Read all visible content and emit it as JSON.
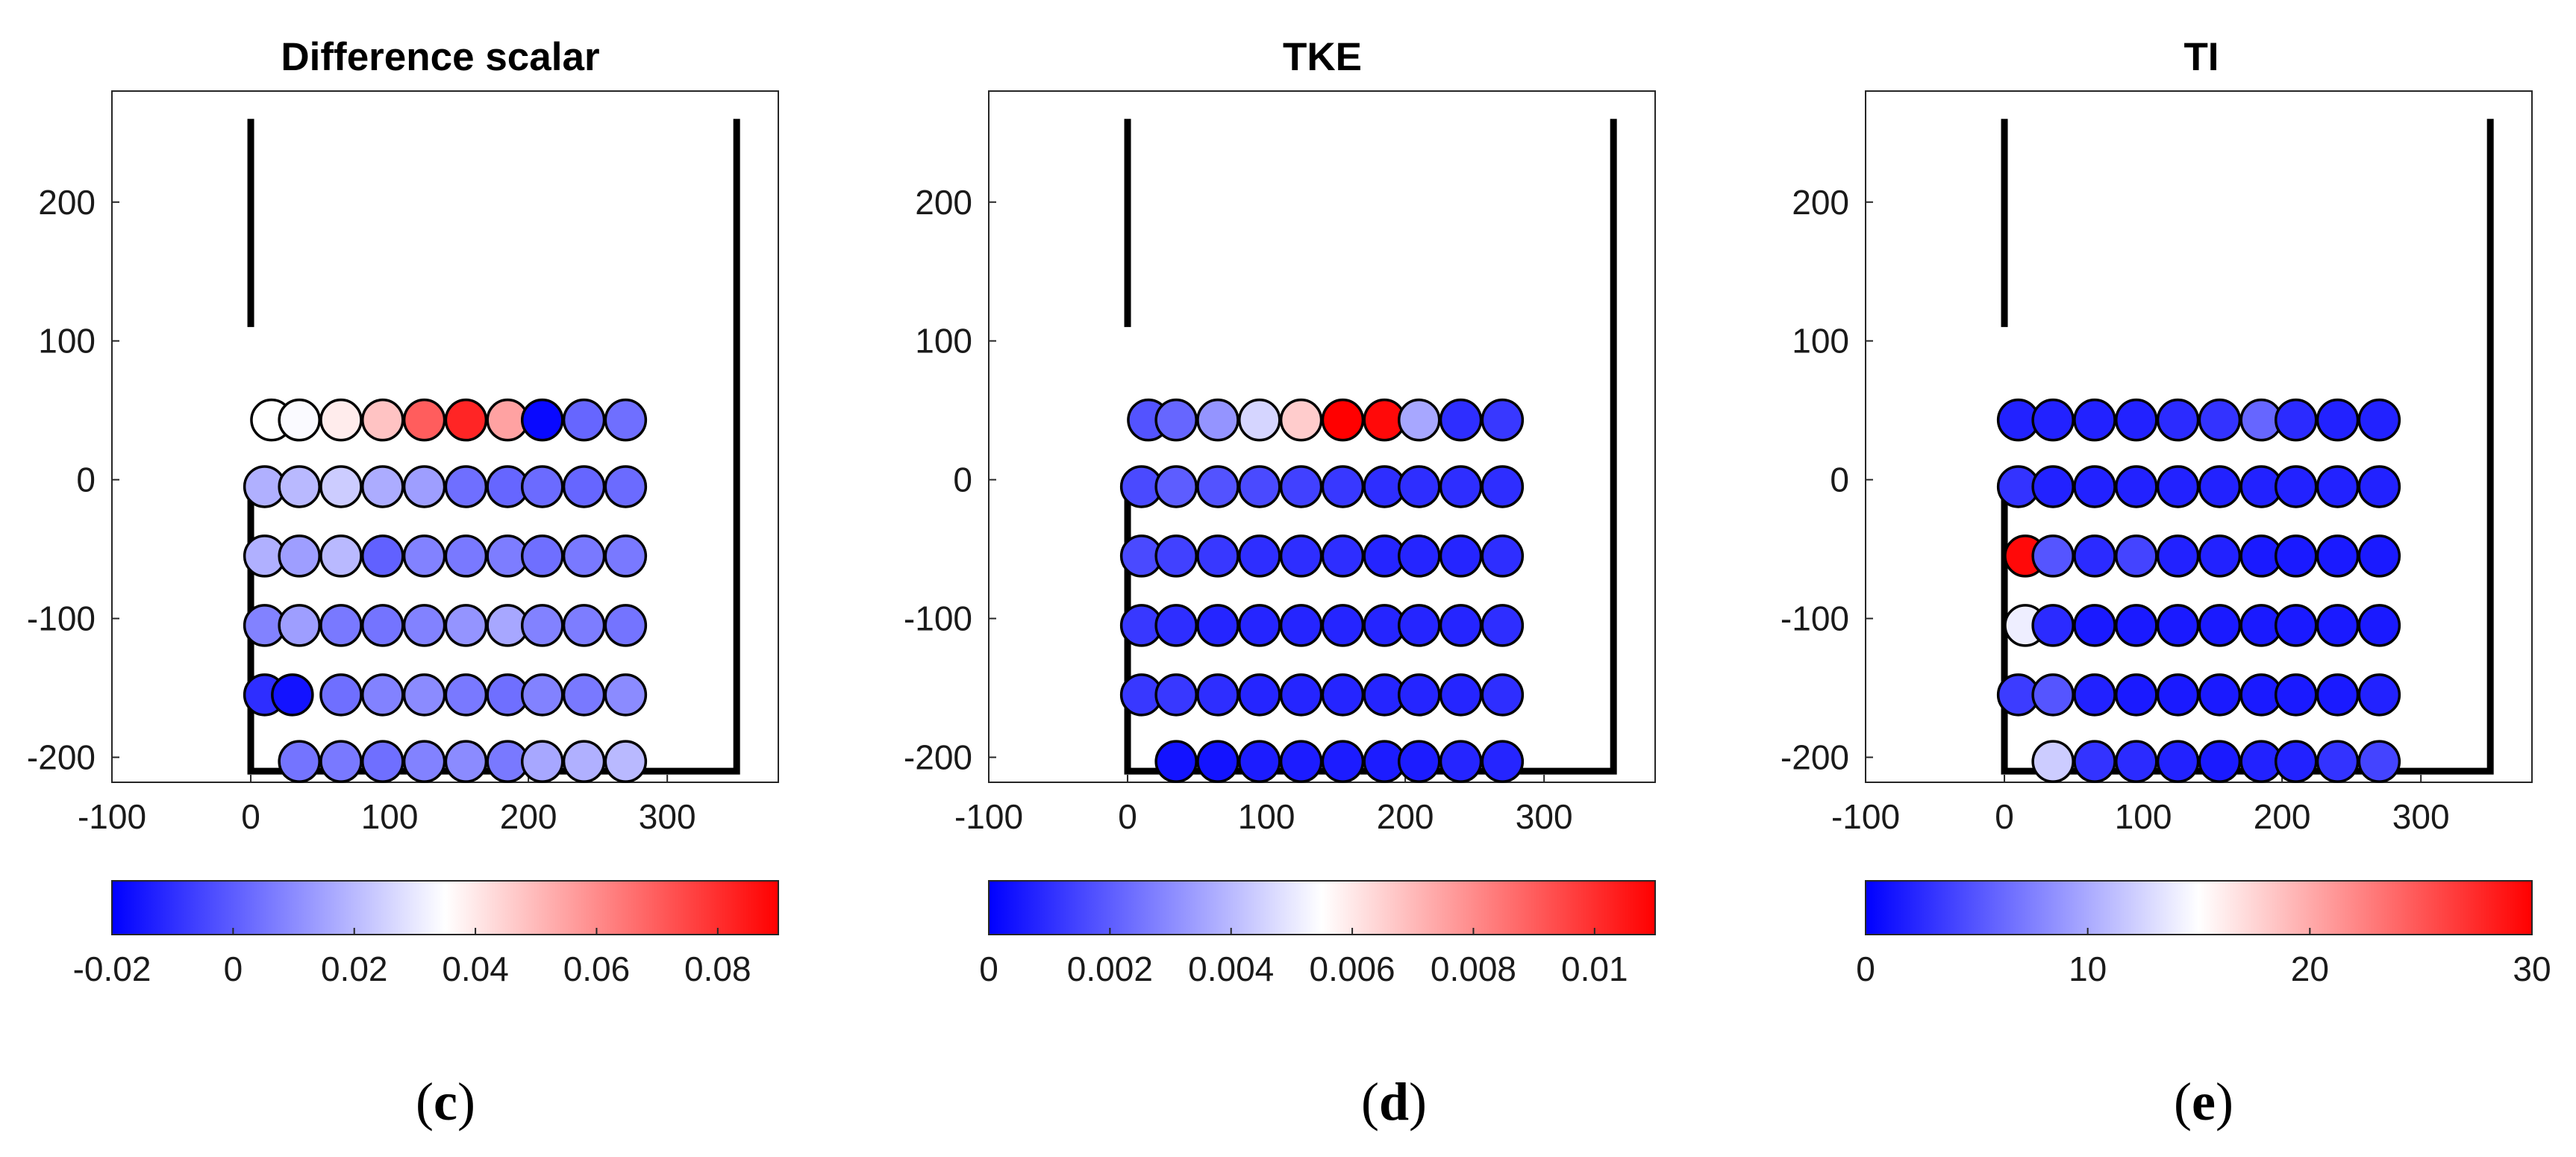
{
  "colors": {
    "low": "#0000ff",
    "mid": "#ffffff",
    "high": "#ff0000",
    "structure": "#000000"
  },
  "chart_data": [
    {
      "type": "scatter",
      "panel": "c",
      "title": "Difference scalar",
      "caption_open": "(",
      "caption_letter": "c",
      "caption_close": ")",
      "xlim": [
        -100,
        380
      ],
      "ylim": [
        -218,
        280
      ],
      "xticks": [
        -100,
        0,
        100,
        200,
        300
      ],
      "xtick_labels": [
        "-100",
        "0",
        "100",
        "200",
        "300"
      ],
      "yticks": [
        200,
        100,
        0,
        -100,
        -200
      ],
      "ytick_labels": [
        "200",
        "100",
        "0",
        "-100",
        "-200"
      ],
      "colorbar": {
        "min": -0.02,
        "max": 0.09,
        "ticks": [
          -0.02,
          0,
          0.02,
          0.04,
          0.06,
          0.08
        ],
        "labels": [
          "-0.02",
          "0",
          "0.02",
          "0.04",
          "0.06",
          "0.08"
        ]
      },
      "walls": [
        [
          [
            0,
            260
          ],
          [
            0,
            110
          ]
        ],
        [
          [
            0,
            0
          ],
          [
            0,
            -210
          ],
          [
            350,
            -210
          ],
          [
            350,
            260
          ]
        ]
      ],
      "rows": [
        {
          "y": 43,
          "x": [
            15,
            35,
            65,
            95,
            125,
            155,
            185,
            210,
            240,
            270
          ],
          "v": [
            0.035,
            0.034,
            0.039,
            0.048,
            0.07,
            0.082,
            0.055,
            -0.018,
            0.002,
            0.004
          ]
        },
        {
          "y": -5,
          "x": [
            10,
            35,
            65,
            95,
            125,
            155,
            185,
            210,
            240,
            270
          ],
          "v": [
            0.018,
            0.02,
            0.024,
            0.017,
            0.014,
            0.004,
            0.002,
            0.003,
            0.002,
            0.003
          ]
        },
        {
          "y": -55,
          "x": [
            10,
            35,
            65,
            95,
            125,
            155,
            185,
            210,
            240,
            270
          ],
          "v": [
            0.018,
            0.014,
            0.02,
            0.001,
            0.008,
            0.006,
            0.007,
            0.004,
            0.006,
            0.006
          ]
        },
        {
          "y": -105,
          "x": [
            10,
            35,
            65,
            95,
            125,
            155,
            185,
            210,
            240,
            270
          ],
          "v": [
            0.008,
            0.014,
            0.006,
            0.005,
            0.008,
            0.012,
            0.016,
            0.008,
            0.007,
            0.005
          ]
        },
        {
          "y": -155,
          "x": [
            10,
            30,
            65,
            95,
            125,
            155,
            185,
            210,
            240,
            270
          ],
          "v": [
            -0.01,
            -0.016,
            0.004,
            0.008,
            0.01,
            0.006,
            0.004,
            0.008,
            0.006,
            0.01
          ]
        },
        {
          "y": -203,
          "x": [
            35,
            65,
            95,
            125,
            155,
            185,
            210,
            240,
            270
          ],
          "v": [
            0.005,
            0.006,
            0.004,
            0.008,
            0.01,
            0.006,
            0.016,
            0.018,
            0.02
          ]
        }
      ]
    },
    {
      "type": "scatter",
      "panel": "d",
      "title": "TKE",
      "caption_open": "(",
      "caption_letter": "d",
      "caption_close": ")",
      "xlim": [
        -100,
        380
      ],
      "ylim": [
        -218,
        280
      ],
      "xticks": [
        -100,
        0,
        100,
        200,
        300
      ],
      "xtick_labels": [
        "-100",
        "0",
        "100",
        "200",
        "300"
      ],
      "yticks": [
        200,
        100,
        0,
        -100,
        -200
      ],
      "ytick_labels": [
        "200",
        "100",
        "0",
        "-100",
        "-200"
      ],
      "colorbar": {
        "min": 0,
        "max": 0.011,
        "ticks": [
          0,
          0.002,
          0.004,
          0.006,
          0.008,
          0.01
        ],
        "labels": [
          "0",
          "0.002",
          "0.004",
          "0.006",
          "0.008",
          "0.01"
        ]
      },
      "walls": [
        [
          [
            0,
            260
          ],
          [
            0,
            110
          ]
        ],
        [
          [
            0,
            0
          ],
          [
            0,
            -210
          ],
          [
            350,
            -210
          ],
          [
            350,
            260
          ]
        ]
      ],
      "rows": [
        {
          "y": 43,
          "x": [
            15,
            35,
            65,
            95,
            125,
            155,
            185,
            210,
            240,
            270
          ],
          "v": [
            0.0018,
            0.0022,
            0.0032,
            0.0046,
            0.0066,
            0.011,
            0.0108,
            0.0036,
            0.001,
            0.0012
          ]
        },
        {
          "y": -5,
          "x": [
            10,
            35,
            65,
            95,
            125,
            155,
            185,
            210,
            240,
            270
          ],
          "v": [
            0.0016,
            0.002,
            0.0018,
            0.0016,
            0.0014,
            0.0012,
            0.001,
            0.001,
            0.001,
            0.001
          ]
        },
        {
          "y": -55,
          "x": [
            10,
            35,
            65,
            95,
            125,
            155,
            185,
            210,
            240,
            270
          ],
          "v": [
            0.0016,
            0.0014,
            0.0012,
            0.001,
            0.001,
            0.001,
            0.0008,
            0.0008,
            0.0008,
            0.001
          ]
        },
        {
          "y": -105,
          "x": [
            10,
            35,
            65,
            95,
            125,
            155,
            185,
            210,
            240,
            270
          ],
          "v": [
            0.0012,
            0.001,
            0.0008,
            0.0008,
            0.0008,
            0.0008,
            0.0008,
            0.0008,
            0.0008,
            0.001
          ]
        },
        {
          "y": -155,
          "x": [
            10,
            35,
            65,
            95,
            125,
            155,
            185,
            210,
            240,
            270
          ],
          "v": [
            0.0012,
            0.0012,
            0.001,
            0.0008,
            0.0008,
            0.0008,
            0.0008,
            0.0008,
            0.0008,
            0.001
          ]
        },
        {
          "y": -203,
          "x": [
            35,
            65,
            95,
            125,
            155,
            185,
            210,
            240,
            270
          ],
          "v": [
            0.0004,
            0.0004,
            0.0006,
            0.0006,
            0.0006,
            0.0006,
            0.0006,
            0.0008,
            0.0008
          ]
        }
      ]
    },
    {
      "type": "scatter",
      "panel": "e",
      "title": "TI",
      "caption_open": "(",
      "caption_letter": "e",
      "caption_close": ")",
      "xlim": [
        -100,
        380
      ],
      "ylim": [
        -218,
        280
      ],
      "xticks": [
        -100,
        0,
        100,
        200,
        300
      ],
      "xtick_labels": [
        "-100",
        "0",
        "100",
        "200",
        "300"
      ],
      "yticks": [
        200,
        100,
        0,
        -100,
        -200
      ],
      "ytick_labels": [
        "200",
        "100",
        "0",
        "-100",
        "-200"
      ],
      "colorbar": {
        "min": 0,
        "max": 30,
        "ticks": [
          0,
          10,
          20,
          30
        ],
        "labels": [
          "0",
          "10",
          "20",
          "30"
        ]
      },
      "walls": [
        [
          [
            0,
            260
          ],
          [
            0,
            110
          ]
        ],
        [
          [
            0,
            0
          ],
          [
            0,
            -210
          ],
          [
            350,
            -210
          ],
          [
            350,
            260
          ]
        ]
      ],
      "rows": [
        {
          "y": 43,
          "x": [
            10,
            35,
            65,
            95,
            125,
            155,
            185,
            210,
            240,
            270
          ],
          "v": [
            2.0,
            2.0,
            2.0,
            2.0,
            2.5,
            3.0,
            6.0,
            2.5,
            2.0,
            2.0
          ]
        },
        {
          "y": -5,
          "x": [
            10,
            35,
            65,
            95,
            125,
            155,
            185,
            210,
            240,
            270
          ],
          "v": [
            3.0,
            2.0,
            2.0,
            2.0,
            2.0,
            2.0,
            2.0,
            2.0,
            2.0,
            2.0
          ]
        },
        {
          "y": -55,
          "x": [
            15,
            35,
            65,
            95,
            125,
            155,
            185,
            210,
            240,
            270
          ],
          "v": [
            29.5,
            5.0,
            2.5,
            4.0,
            2.0,
            2.0,
            1.5,
            1.5,
            1.5,
            1.5
          ]
        },
        {
          "y": -105,
          "x": [
            15,
            35,
            65,
            95,
            125,
            155,
            185,
            210,
            240,
            270
          ],
          "v": [
            14.0,
            2.5,
            1.5,
            1.5,
            1.5,
            1.5,
            1.5,
            1.5,
            1.5,
            1.5
          ]
        },
        {
          "y": -155,
          "x": [
            10,
            35,
            65,
            95,
            125,
            155,
            185,
            210,
            240,
            270
          ],
          "v": [
            3.5,
            5.0,
            2.0,
            1.5,
            1.5,
            1.5,
            1.5,
            1.5,
            1.5,
            2.0
          ]
        },
        {
          "y": -203,
          "x": [
            35,
            65,
            95,
            125,
            155,
            185,
            210,
            240,
            270
          ],
          "v": [
            12.0,
            3.0,
            2.5,
            2.0,
            1.5,
            2.0,
            2.0,
            3.0,
            4.0
          ]
        }
      ]
    }
  ]
}
